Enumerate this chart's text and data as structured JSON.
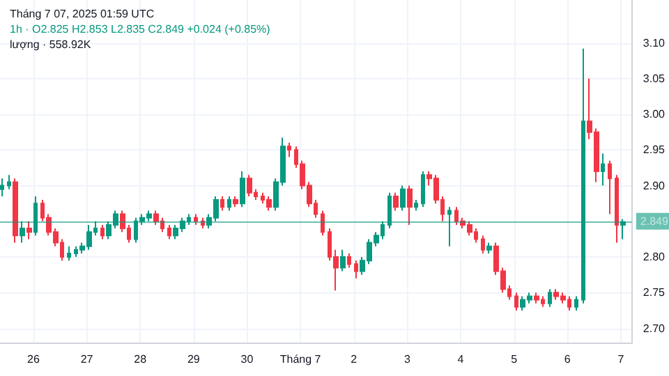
{
  "chart_data": {
    "type": "candlestick",
    "title": "Tháng 7 07, 2025 01:59 UTC",
    "annotations": [
      "1h · O2.825 H2.853 L2.835 C2.849 +0.024 (+0.85%)",
      "lượng · 558.92K"
    ],
    "x": [
      "2025-06-25T10:00",
      "2025-06-25T13:00",
      "2025-06-25T16:00",
      "2025-06-25T19:00",
      "2025-06-25T22:00",
      "2025-06-26T01:00",
      "2025-06-26T04:00",
      "2025-06-26T07:00",
      "2025-06-26T10:00",
      "2025-06-26T13:00",
      "2025-06-26T16:00",
      "2025-06-26T19:00",
      "2025-06-26T22:00",
      "2025-06-27T01:00",
      "2025-06-27T04:00",
      "2025-06-27T07:00",
      "2025-06-27T10:00",
      "2025-06-27T13:00",
      "2025-06-27T16:00",
      "2025-06-27T19:00",
      "2025-06-27T22:00",
      "2025-06-28T01:00",
      "2025-06-28T04:00",
      "2025-06-28T07:00",
      "2025-06-28T10:00",
      "2025-06-28T13:00",
      "2025-06-28T16:00",
      "2025-06-28T19:00",
      "2025-06-28T22:00",
      "2025-06-29T01:00",
      "2025-06-29T04:00",
      "2025-06-29T07:00",
      "2025-06-29T10:00",
      "2025-06-29T13:00",
      "2025-06-29T16:00",
      "2025-06-29T19:00",
      "2025-06-29T22:00",
      "2025-06-30T01:00",
      "2025-06-30T04:00",
      "2025-06-30T07:00",
      "2025-06-30T10:00",
      "2025-06-30T13:00",
      "2025-06-30T16:00",
      "2025-06-30T19:00",
      "2025-06-30T22:00",
      "2025-07-01T01:00",
      "2025-07-01T04:00",
      "2025-07-01T07:00",
      "2025-07-01T10:00",
      "2025-07-01T13:00",
      "2025-07-01T16:00",
      "2025-07-01T19:00",
      "2025-07-01T22:00",
      "2025-07-02T01:00",
      "2025-07-02T04:00",
      "2025-07-02T07:00",
      "2025-07-02T10:00",
      "2025-07-02T13:00",
      "2025-07-02T16:00",
      "2025-07-02T19:00",
      "2025-07-02T22:00",
      "2025-07-03T01:00",
      "2025-07-03T04:00",
      "2025-07-03T07:00",
      "2025-07-03T10:00",
      "2025-07-03T13:00",
      "2025-07-03T16:00",
      "2025-07-03T19:00",
      "2025-07-03T22:00",
      "2025-07-04T01:00",
      "2025-07-04T04:00",
      "2025-07-04T07:00",
      "2025-07-04T10:00",
      "2025-07-04T13:00",
      "2025-07-04T16:00",
      "2025-07-04T19:00",
      "2025-07-04T22:00",
      "2025-07-05T01:00",
      "2025-07-05T04:00",
      "2025-07-05T07:00",
      "2025-07-05T10:00",
      "2025-07-05T13:00",
      "2025-07-05T16:00",
      "2025-07-05T19:00",
      "2025-07-05T22:00",
      "2025-07-06T01:00",
      "2025-07-06T04:00",
      "2025-07-06T07:00",
      "2025-07-06T10:00",
      "2025-07-06T13:00",
      "2025-07-06T16:00",
      "2025-07-06T19:00",
      "2025-07-06T22:00",
      "2025-07-07T01:00"
    ],
    "ohlc": [
      [
        2.895,
        2.91,
        2.885,
        2.9
      ],
      [
        2.9,
        2.915,
        2.895,
        2.905
      ],
      [
        2.905,
        2.91,
        2.82,
        2.83
      ],
      [
        2.83,
        2.85,
        2.82,
        2.84
      ],
      [
        2.84,
        2.85,
        2.825,
        2.835
      ],
      [
        2.835,
        2.885,
        2.83,
        2.875
      ],
      [
        2.875,
        2.88,
        2.85,
        2.855
      ],
      [
        2.855,
        2.86,
        2.83,
        2.835
      ],
      [
        2.835,
        2.84,
        2.815,
        2.82
      ],
      [
        2.82,
        2.825,
        2.795,
        2.8
      ],
      [
        2.8,
        2.815,
        2.795,
        2.805
      ],
      [
        2.805,
        2.815,
        2.8,
        2.81
      ],
      [
        2.81,
        2.82,
        2.805,
        2.815
      ],
      [
        2.815,
        2.845,
        2.81,
        2.835
      ],
      [
        2.835,
        2.85,
        2.83,
        2.84
      ],
      [
        2.84,
        2.845,
        2.825,
        2.83
      ],
      [
        2.83,
        2.85,
        2.825,
        2.845
      ],
      [
        2.845,
        2.865,
        2.84,
        2.86
      ],
      [
        2.86,
        2.865,
        2.835,
        2.84
      ],
      [
        2.84,
        2.845,
        2.82,
        2.825
      ],
      [
        2.825,
        2.855,
        2.82,
        2.85
      ],
      [
        2.85,
        2.86,
        2.845,
        2.855
      ],
      [
        2.855,
        2.865,
        2.85,
        2.86
      ],
      [
        2.86,
        2.865,
        2.845,
        2.85
      ],
      [
        2.85,
        2.855,
        2.835,
        2.84
      ],
      [
        2.84,
        2.845,
        2.825,
        2.83
      ],
      [
        2.83,
        2.845,
        2.825,
        2.84
      ],
      [
        2.84,
        2.855,
        2.835,
        2.85
      ],
      [
        2.85,
        2.86,
        2.845,
        2.855
      ],
      [
        2.855,
        2.86,
        2.845,
        2.85
      ],
      [
        2.85,
        2.855,
        2.84,
        2.845
      ],
      [
        2.845,
        2.86,
        2.84,
        2.855
      ],
      [
        2.855,
        2.885,
        2.85,
        2.88
      ],
      [
        2.88,
        2.885,
        2.865,
        2.87
      ],
      [
        2.87,
        2.885,
        2.865,
        2.88
      ],
      [
        2.88,
        2.885,
        2.87,
        2.875
      ],
      [
        2.875,
        2.92,
        2.87,
        2.91
      ],
      [
        2.91,
        2.915,
        2.885,
        2.89
      ],
      [
        2.89,
        2.895,
        2.88,
        2.885
      ],
      [
        2.885,
        2.89,
        2.875,
        2.88
      ],
      [
        2.88,
        2.885,
        2.865,
        2.87
      ],
      [
        2.87,
        2.91,
        2.865,
        2.905
      ],
      [
        2.905,
        2.967,
        2.9,
        2.955
      ],
      [
        2.955,
        2.96,
        2.94,
        2.95
      ],
      [
        2.95,
        2.955,
        2.925,
        2.93
      ],
      [
        2.93,
        2.935,
        2.895,
        2.9
      ],
      [
        2.9,
        2.905,
        2.87,
        2.875
      ],
      [
        2.875,
        2.88,
        2.855,
        2.86
      ],
      [
        2.86,
        2.865,
        2.83,
        2.835
      ],
      [
        2.835,
        2.84,
        2.795,
        2.8
      ],
      [
        2.8,
        2.81,
        2.753,
        2.785
      ],
      [
        2.785,
        2.81,
        2.78,
        2.8
      ],
      [
        2.8,
        2.805,
        2.785,
        2.79
      ],
      [
        2.79,
        2.795,
        2.77,
        2.78
      ],
      [
        2.78,
        2.8,
        2.775,
        2.795
      ],
      [
        2.795,
        2.825,
        2.79,
        2.82
      ],
      [
        2.82,
        2.835,
        2.815,
        2.83
      ],
      [
        2.83,
        2.85,
        2.825,
        2.845
      ],
      [
        2.845,
        2.89,
        2.84,
        2.885
      ],
      [
        2.885,
        2.89,
        2.865,
        2.87
      ],
      [
        2.87,
        2.9,
        2.865,
        2.895
      ],
      [
        2.895,
        2.9,
        2.845,
        2.87
      ],
      [
        2.87,
        2.88,
        2.865,
        2.875
      ],
      [
        2.875,
        2.92,
        2.87,
        2.915
      ],
      [
        2.915,
        2.92,
        2.9,
        2.91
      ],
      [
        2.91,
        2.915,
        2.875,
        2.88
      ],
      [
        2.88,
        2.885,
        2.85,
        2.86
      ],
      [
        2.86,
        2.87,
        2.815,
        2.865
      ],
      [
        2.865,
        2.87,
        2.845,
        2.85
      ],
      [
        2.85,
        2.855,
        2.84,
        2.845
      ],
      [
        2.845,
        2.85,
        2.83,
        2.835
      ],
      [
        2.835,
        2.84,
        2.82,
        2.825
      ],
      [
        2.825,
        2.83,
        2.805,
        2.81
      ],
      [
        2.81,
        2.82,
        2.805,
        2.815
      ],
      [
        2.815,
        2.82,
        2.775,
        2.78
      ],
      [
        2.78,
        2.785,
        2.75,
        2.755
      ],
      [
        2.755,
        2.76,
        2.74,
        2.745
      ],
      [
        2.745,
        2.75,
        2.725,
        2.73
      ],
      [
        2.73,
        2.745,
        2.725,
        2.74
      ],
      [
        2.74,
        2.75,
        2.735,
        2.745
      ],
      [
        2.745,
        2.75,
        2.735,
        2.74
      ],
      [
        2.74,
        2.745,
        2.73,
        2.735
      ],
      [
        2.735,
        2.755,
        2.73,
        2.75
      ],
      [
        2.75,
        2.755,
        2.74,
        2.745
      ],
      [
        2.745,
        2.75,
        2.735,
        2.74
      ],
      [
        2.74,
        2.745,
        2.725,
        2.73
      ],
      [
        2.73,
        2.745,
        2.725,
        2.74
      ],
      [
        2.74,
        3.092,
        2.735,
        2.99
      ],
      [
        2.99,
        3.05,
        2.965,
        2.975
      ],
      [
        2.975,
        2.98,
        2.905,
        2.92
      ],
      [
        2.92,
        2.945,
        2.9,
        2.93
      ],
      [
        2.93,
        2.935,
        2.86,
        2.91
      ],
      [
        2.91,
        2.915,
        2.82,
        2.845
      ],
      [
        2.845,
        2.853,
        2.825,
        2.849
      ]
    ],
    "colors": [
      "#089981",
      "#089981",
      "#f23645",
      "#089981",
      "#f23645",
      "#089981",
      "#f23645",
      "#f23645",
      "#f23645",
      "#f23645",
      "#089981",
      "#089981",
      "#089981",
      "#089981",
      "#089981",
      "#f23645",
      "#089981",
      "#089981",
      "#f23645",
      "#f23645",
      "#089981",
      "#089981",
      "#089981",
      "#f23645",
      "#f23645",
      "#f23645",
      "#089981",
      "#089981",
      "#089981",
      "#f23645",
      "#f23645",
      "#089981",
      "#089981",
      "#f23645",
      "#089981",
      "#f23645",
      "#089981",
      "#f23645",
      "#f23645",
      "#f23645",
      "#f23645",
      "#089981",
      "#089981",
      "#f23645",
      "#f23645",
      "#f23645",
      "#f23645",
      "#f23645",
      "#f23645",
      "#f23645",
      "#f23645",
      "#089981",
      "#f23645",
      "#f23645",
      "#089981",
      "#089981",
      "#089981",
      "#089981",
      "#089981",
      "#f23645",
      "#089981",
      "#f23645",
      "#089981",
      "#089981",
      "#f23645",
      "#f23645",
      "#f23645",
      "#089981",
      "#f23645",
      "#f23645",
      "#f23645",
      "#f23645",
      "#f23645",
      "#089981",
      "#f23645",
      "#f23645",
      "#f23645",
      "#f23645",
      "#089981",
      "#089981",
      "#f23645",
      "#f23645",
      "#089981",
      "#f23645",
      "#f23645",
      "#f23645",
      "#089981",
      "#089981",
      "#f23645",
      "#f23645",
      "#089981",
      "#f23645",
      "#f23645",
      "#089981"
    ],
    "xlim": [
      "2025-06-25T09:00",
      "2025-07-07T05:00"
    ],
    "xticks": [
      {
        "value": "2025-06-26",
        "label": "26"
      },
      {
        "value": "2025-06-27",
        "label": "27"
      },
      {
        "value": "2025-06-28",
        "label": "28"
      },
      {
        "value": "2025-06-29",
        "label": "29"
      },
      {
        "value": "2025-06-30",
        "label": "30"
      },
      {
        "value": "2025-07-01",
        "label": "Tháng 7"
      },
      {
        "value": "2025-07-02",
        "label": "2"
      },
      {
        "value": "2025-07-03",
        "label": "3"
      },
      {
        "value": "2025-07-04",
        "label": "4"
      },
      {
        "value": "2025-07-05",
        "label": "5"
      },
      {
        "value": "2025-07-06",
        "label": "6"
      },
      {
        "value": "2025-07-07",
        "label": "7"
      }
    ],
    "ylim": [
      2.68,
      3.16
    ],
    "yticks": [
      {
        "value": 2.7,
        "label": "2.70"
      },
      {
        "value": 2.75,
        "label": "2.75"
      },
      {
        "value": 2.8,
        "label": "2.80"
      },
      {
        "value": 2.9,
        "label": "2.90"
      },
      {
        "value": 2.95,
        "label": "2.95"
      },
      {
        "value": 3.0,
        "label": "3.00"
      },
      {
        "value": 3.05,
        "label": "3.05"
      },
      {
        "value": 3.1,
        "label": "3.10"
      }
    ],
    "ref_lines": [
      {
        "axis": "y",
        "value": 2.849,
        "label": "2.849",
        "color": "#089981"
      }
    ],
    "grid": true
  }
}
